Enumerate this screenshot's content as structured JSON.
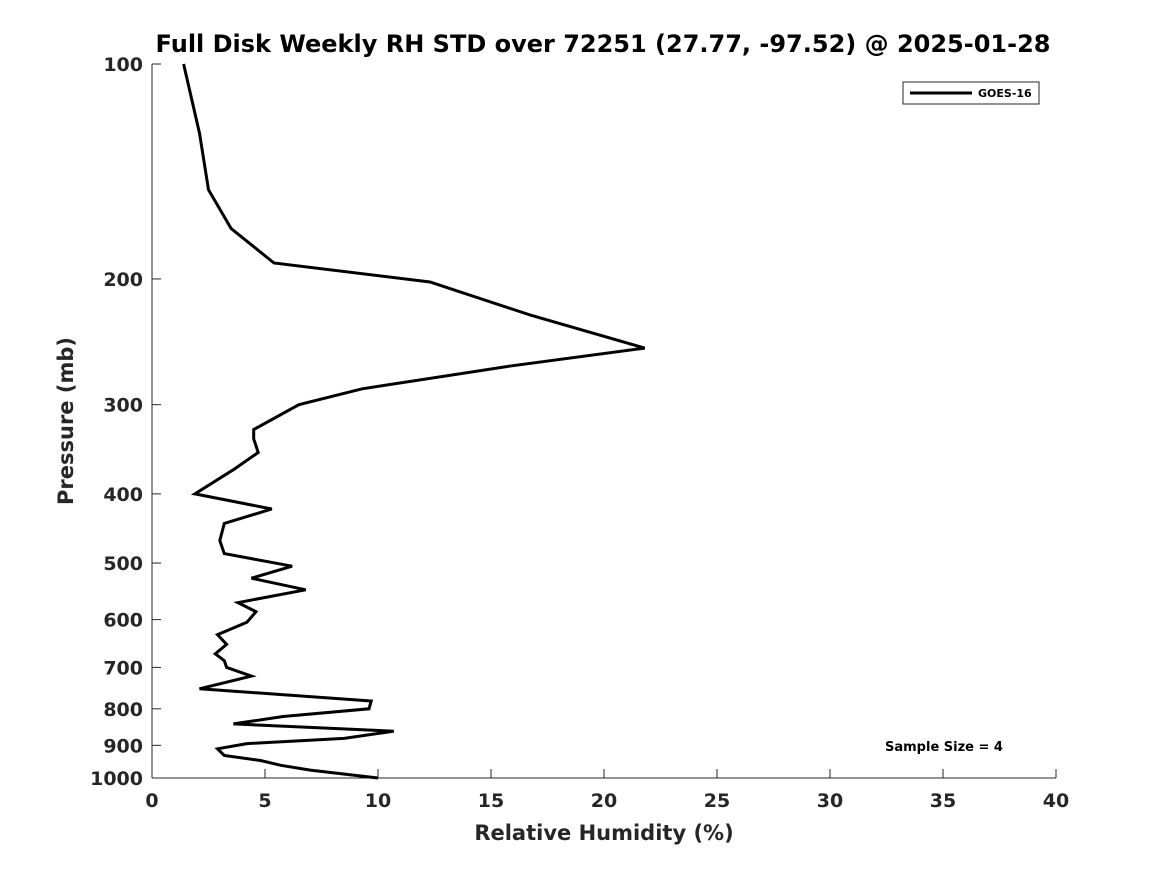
{
  "chart_data": {
    "type": "line",
    "title": "Full Disk Weekly RH STD over 72251 (27.77, -97.52) @ 2025-01-28",
    "xlabel": "Relative Humidity (%)",
    "ylabel": "Pressure (mb)",
    "xlim": [
      0,
      40
    ],
    "ylim": [
      100,
      1000
    ],
    "y_scale": "log",
    "y_reversed": true,
    "x_ticks": [
      "0",
      "5",
      "10",
      "15",
      "20",
      "25",
      "30",
      "35",
      "40"
    ],
    "y_ticks": [
      "100",
      "200",
      "300",
      "400",
      "500",
      "600",
      "700",
      "800",
      "900",
      "1000"
    ],
    "grid": false,
    "legend_position": "top-right",
    "series": [
      {
        "name": "GOES-16",
        "color": "#000000",
        "x": [
          1.4,
          2.1,
          2.5,
          3.5,
          5.4,
          12.3,
          16.8,
          21.8,
          15.8,
          9.3,
          6.5,
          4.5,
          4.5,
          4.7,
          3.6,
          1.9,
          5.3,
          3.2,
          3.0,
          3.2,
          6.2,
          4.4,
          6.8,
          3.8,
          4.6,
          4.2,
          2.9,
          3.3,
          2.8,
          3.2,
          3.3,
          4.4,
          2.1,
          9.7,
          9.6,
          5.8,
          3.6,
          10.7,
          8.5,
          4.2,
          2.9,
          3.2,
          4.8,
          5.7,
          7.0,
          10.0
        ],
        "y": [
          100,
          125,
          150,
          170,
          190,
          202,
          225,
          250,
          265,
          285,
          300,
          325,
          335,
          350,
          370,
          400,
          420,
          440,
          465,
          485,
          505,
          525,
          545,
          568,
          585,
          605,
          630,
          650,
          670,
          685,
          700,
          720,
          750,
          780,
          800,
          820,
          840,
          860,
          880,
          895,
          910,
          930,
          945,
          960,
          975,
          1000
        ]
      }
    ],
    "annotations": [
      "Sample Size = 4"
    ]
  }
}
